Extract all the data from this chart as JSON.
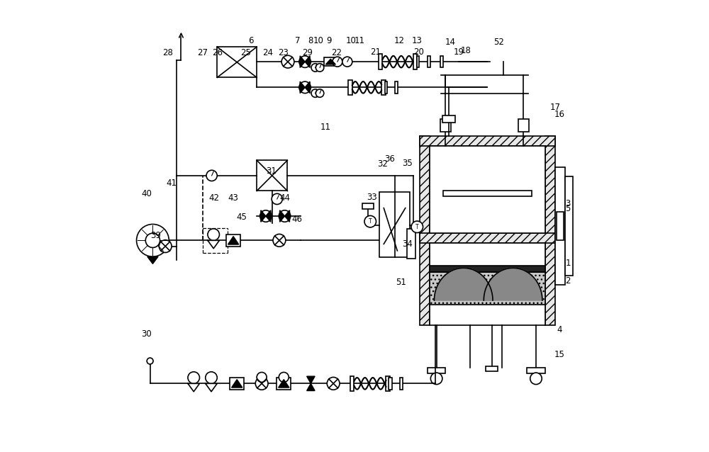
{
  "bg_color": "#ffffff",
  "line_color": "#000000",
  "lw": 1.2,
  "fig_width": 10.0,
  "fig_height": 6.38
}
